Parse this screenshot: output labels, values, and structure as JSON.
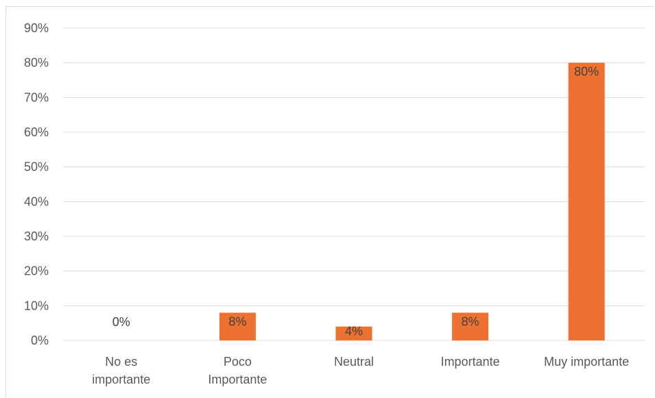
{
  "chart_data": {
    "type": "bar",
    "title": "",
    "xlabel": "",
    "ylabel": "",
    "categories": [
      [
        "No es",
        "importante"
      ],
      [
        "Poco",
        "Importante"
      ],
      [
        "Neutral"
      ],
      [
        "Importante"
      ],
      [
        "Muy importante"
      ]
    ],
    "values": [
      0,
      8,
      4,
      8,
      80
    ],
    "data_labels": [
      "0%",
      "8%",
      "4%",
      "8%",
      "80%"
    ],
    "y_ticks": [
      "0%",
      "10%",
      "20%",
      "30%",
      "40%",
      "50%",
      "60%",
      "70%",
      "80%",
      "90%"
    ],
    "ylim": [
      0,
      90
    ],
    "y_unit": "%",
    "grid": true,
    "legend": "none",
    "bar_color": "#ED7131"
  }
}
